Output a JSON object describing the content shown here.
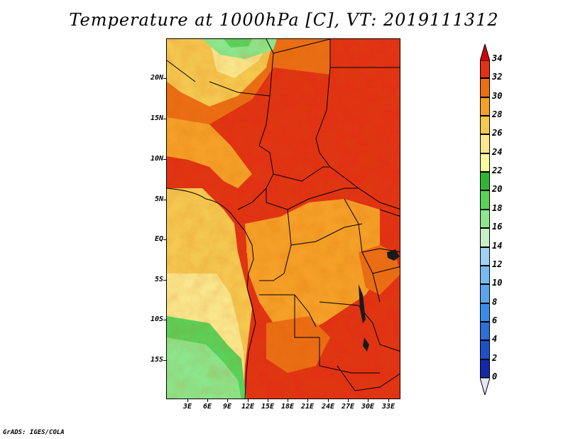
{
  "title": "Temperature at 1000hPa [C], VT: 2019111312",
  "footer": "GrADS: IGES/COLA",
  "map": {
    "lat_labels": [
      "20N",
      "15N",
      "10N",
      "5N",
      "EQ",
      "5S",
      "10S",
      "15S"
    ],
    "lon_labels": [
      "3E",
      "6E",
      "9E",
      "12E",
      "15E",
      "18E",
      "21E",
      "24E",
      "27E",
      "30E",
      "33E"
    ],
    "lat_range": [
      -19.8,
      24.5
    ],
    "lon_range": [
      0.0,
      35.0
    ]
  },
  "colorbar": {
    "levels": [
      "0",
      "2",
      "4",
      "6",
      "8",
      "10",
      "12",
      "14",
      "16",
      "18",
      "20",
      "22",
      "24",
      "26",
      "28",
      "30",
      "32",
      "34"
    ],
    "colors": [
      "#0a0a7a",
      "#1428a8",
      "#1e50c8",
      "#2d6ed7",
      "#3c8ce6",
      "#5aa5ec",
      "#78b9f0",
      "#a0d2f8",
      "#c8f0c8",
      "#8ce68c",
      "#5ad25a",
      "#32b432",
      "#fafaa0",
      "#fae68c",
      "#f5c850",
      "#f5a028",
      "#eb6e14",
      "#e13214",
      "#c80a0a"
    ]
  }
}
